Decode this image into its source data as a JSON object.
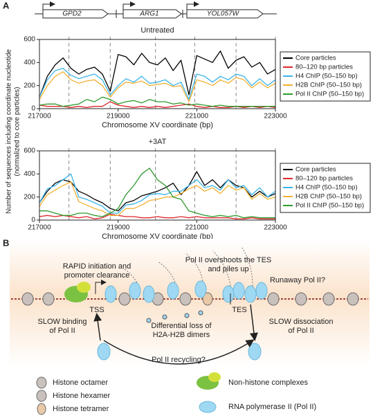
{
  "panel_labels": [
    "A",
    "B"
  ],
  "genes": [
    "GPD2",
    "ARG1",
    "YOL057W"
  ],
  "shared_ylabel": [
    "Number of sequences including coordinate nucleotide",
    "(normalized to core particles)"
  ],
  "chart_data": [
    {
      "type": "line",
      "title": "Untreated",
      "xlabel": "Chromosome XV coordinate (bp)",
      "x": [
        217000,
        217200,
        217400,
        217600,
        217800,
        218000,
        218200,
        218400,
        218600,
        218800,
        219000,
        219200,
        219400,
        219600,
        219800,
        220000,
        220200,
        220400,
        220600,
        220800,
        221000,
        221200,
        221400,
        221600,
        221800,
        222000,
        222200,
        222400,
        222600,
        222800,
        223000
      ],
      "xlim": [
        217000,
        223000
      ],
      "xticks": [
        217000,
        219000,
        221000,
        223000
      ],
      "ylim": [
        0,
        600
      ],
      "yticks": [
        0,
        200,
        400,
        600
      ],
      "reference_lines": [
        217750,
        218800,
        219950,
        220950,
        222000,
        223000
      ],
      "legend": "right",
      "series": [
        {
          "name": "Core particles",
          "color": "#000000",
          "values": [
            100,
            280,
            380,
            440,
            350,
            300,
            340,
            360,
            300,
            150,
            470,
            450,
            380,
            480,
            400,
            380,
            440,
            330,
            420,
            120,
            460,
            430,
            400,
            500,
            350,
            420,
            450,
            360,
            400,
            300,
            340
          ]
        },
        {
          "name": "80–120 bp particles",
          "color": "#e0262b",
          "values": [
            30,
            20,
            20,
            20,
            10,
            20,
            10,
            20,
            20,
            60,
            30,
            20,
            10,
            20,
            10,
            20,
            10,
            20,
            30,
            40,
            20,
            10,
            20,
            10,
            10,
            20,
            10,
            20,
            10,
            20,
            10
          ]
        },
        {
          "name": "H4 ChIP (50–150 bp)",
          "color": "#3ab4e8",
          "values": [
            100,
            250,
            330,
            350,
            290,
            260,
            280,
            300,
            250,
            120,
            200,
            260,
            230,
            280,
            220,
            230,
            250,
            200,
            230,
            80,
            300,
            280,
            230,
            280,
            250,
            300,
            280,
            200,
            260,
            200,
            250
          ]
        },
        {
          "name": "H2B ChIP (50–150 bp)",
          "color": "#f2b134",
          "values": [
            80,
            200,
            280,
            320,
            250,
            220,
            240,
            250,
            200,
            100,
            180,
            230,
            220,
            240,
            200,
            210,
            220,
            190,
            200,
            60,
            250,
            230,
            200,
            250,
            220,
            270,
            250,
            180,
            230,
            180,
            220
          ]
        },
        {
          "name": "Pol II ChIP (50–150 bp)",
          "color": "#2e9a2e",
          "values": [
            30,
            40,
            40,
            20,
            30,
            40,
            80,
            60,
            100,
            80,
            40,
            60,
            70,
            50,
            80,
            60,
            60,
            40,
            50,
            30,
            40,
            30,
            20,
            30,
            20,
            20,
            20,
            20,
            20,
            20,
            20
          ]
        }
      ]
    },
    {
      "type": "line",
      "title": "+3AT",
      "xlabel": "Chromosome XV coordinate (bp)",
      "x": [
        217000,
        217200,
        217400,
        217600,
        217800,
        218000,
        218200,
        218400,
        218600,
        218800,
        219000,
        219200,
        219400,
        219600,
        219800,
        220000,
        220200,
        220400,
        220600,
        220800,
        221000,
        221200,
        221400,
        221600,
        221800,
        222000,
        222200,
        222400,
        222600,
        222800,
        223000
      ],
      "xlim": [
        217000,
        223000
      ],
      "xticks": [
        217000,
        219000,
        221000,
        223000
      ],
      "ylim": [
        0,
        600
      ],
      "yticks": [
        0,
        200,
        400,
        600
      ],
      "reference_lines": [
        217750,
        218800,
        219950,
        220950,
        222000,
        223000
      ],
      "legend": "right",
      "series": [
        {
          "name": "Core particles",
          "color": "#000000",
          "values": [
            150,
            250,
            320,
            350,
            330,
            250,
            220,
            180,
            150,
            100,
            80,
            150,
            170,
            210,
            230,
            250,
            280,
            320,
            220,
            300,
            420,
            300,
            350,
            280,
            350,
            300,
            280,
            200,
            250,
            200,
            230
          ]
        },
        {
          "name": "80–120 bp particles",
          "color": "#e0262b",
          "values": [
            30,
            40,
            30,
            40,
            30,
            20,
            30,
            10,
            20,
            50,
            40,
            30,
            30,
            20,
            20,
            30,
            20,
            20,
            30,
            20,
            30,
            20,
            20,
            20,
            20,
            10,
            10,
            20,
            10,
            10,
            10
          ]
        },
        {
          "name": "H4 ChIP (50–150 bp)",
          "color": "#3ab4e8",
          "values": [
            150,
            270,
            300,
            350,
            400,
            200,
            180,
            150,
            120,
            60,
            60,
            130,
            140,
            170,
            220,
            230,
            220,
            250,
            250,
            300,
            350,
            280,
            300,
            260,
            350,
            280,
            300,
            220,
            280,
            200,
            250
          ]
        },
        {
          "name": "H2B ChIP (50–150 bp)",
          "color": "#f2b134",
          "values": [
            120,
            220,
            260,
            300,
            330,
            160,
            130,
            100,
            80,
            40,
            40,
            100,
            100,
            130,
            170,
            180,
            200,
            200,
            230,
            270,
            300,
            250,
            280,
            230,
            300,
            260,
            280,
            180,
            230,
            180,
            200
          ]
        },
        {
          "name": "Pol II ChIP (50–150 bp)",
          "color": "#2e9a2e",
          "values": [
            80,
            80,
            60,
            40,
            40,
            60,
            60,
            40,
            30,
            60,
            100,
            220,
            300,
            400,
            450,
            350,
            300,
            200,
            180,
            80,
            60,
            40,
            30,
            40,
            30,
            40,
            20,
            30,
            20,
            20,
            20
          ]
        }
      ]
    }
  ],
  "diagram": {
    "rapid": [
      "RAPID initiation and",
      "promoter clearance"
    ],
    "overshoot": [
      "Pol II overshoots the TES",
      "and piles up"
    ],
    "runaway": "Runaway Pol II?",
    "tss": "TSS",
    "tes": "TES",
    "slow_binding": [
      "SLOW binding",
      "of Pol II"
    ],
    "dimers": [
      "Differential loss of",
      "H2A-H2B dimers"
    ],
    "slow_dissociation": [
      "SLOW dissociation",
      "of Pol II"
    ],
    "recycling": "Pol II recycling?",
    "legend": [
      "Histone octamer",
      "Histone hexamer",
      "Histone tetramer",
      "Non-histone complexes",
      "RNA polymerase II (Pol II)"
    ]
  }
}
